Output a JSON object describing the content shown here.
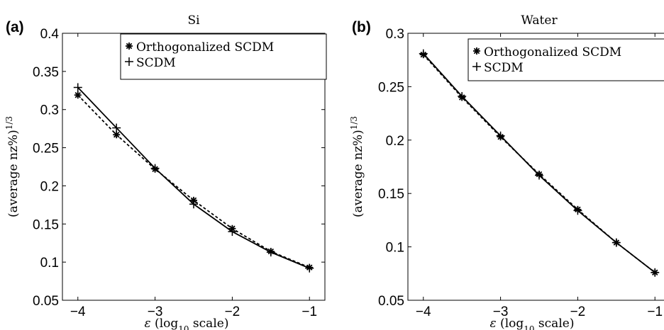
{
  "chart_data": [
    {
      "panel_label": "(a)",
      "type": "line",
      "title": "Si",
      "xlabel": "ε (log10 scale)",
      "ylabel": "(average nz%)^1/3",
      "xlim": [
        -4.2,
        -0.8
      ],
      "ylim": [
        0.05,
        0.4
      ],
      "xticks": [
        -4,
        -3,
        -2,
        -1
      ],
      "yticks": [
        0.05,
        0.1,
        0.15,
        0.2,
        0.25,
        0.3,
        0.35,
        0.4
      ],
      "ytick_labels": [
        "0.05",
        "0.1",
        "0.15",
        "0.2",
        "0.25",
        "0.3",
        "0.35",
        "0.4"
      ],
      "grid": false,
      "legend_position": "top-right",
      "series": [
        {
          "name": "Orthogonalized SCDM",
          "marker": "asterisk",
          "line": "dashed",
          "x": [
            -4,
            -3.5,
            -3,
            -2.5,
            -2,
            -1.5,
            -1
          ],
          "y": [
            0.319,
            0.267,
            0.222,
            0.181,
            0.144,
            0.114,
            0.093
          ]
        },
        {
          "name": "SCDM",
          "marker": "plus",
          "line": "solid",
          "x": [
            -4,
            -3.5,
            -3,
            -2.5,
            -2,
            -1.5,
            -1
          ],
          "y": [
            0.329,
            0.276,
            0.223,
            0.176,
            0.14,
            0.113,
            0.092
          ]
        }
      ]
    },
    {
      "panel_label": "(b)",
      "type": "line",
      "title": "Water",
      "xlabel": "ε (log10 scale)",
      "ylabel": "(average nz%)^1/3",
      "xlim": [
        -4.2,
        -0.8
      ],
      "ylim": [
        0.05,
        0.3
      ],
      "xticks": [
        -4,
        -3,
        -2,
        -1
      ],
      "yticks": [
        0.05,
        0.1,
        0.15,
        0.2,
        0.25,
        0.3
      ],
      "ytick_labels": [
        "0.05",
        "0.1",
        "0.15",
        "0.2",
        "0.25",
        "0.3"
      ],
      "grid": false,
      "legend_position": "top-right",
      "series": [
        {
          "name": "Orthogonalized SCDM",
          "marker": "asterisk",
          "line": "dashed",
          "x": [
            -4,
            -3.5,
            -3,
            -2.5,
            -2,
            -1.5,
            -1
          ],
          "y": [
            0.28,
            0.24,
            0.203,
            0.168,
            0.135,
            0.104,
            0.076
          ]
        },
        {
          "name": "SCDM",
          "marker": "plus",
          "line": "solid",
          "x": [
            -4,
            -3.5,
            -3,
            -2.5,
            -2,
            -1.5,
            -1
          ],
          "y": [
            0.281,
            0.241,
            0.204,
            0.167,
            0.134,
            0.104,
            0.076
          ]
        }
      ]
    }
  ]
}
